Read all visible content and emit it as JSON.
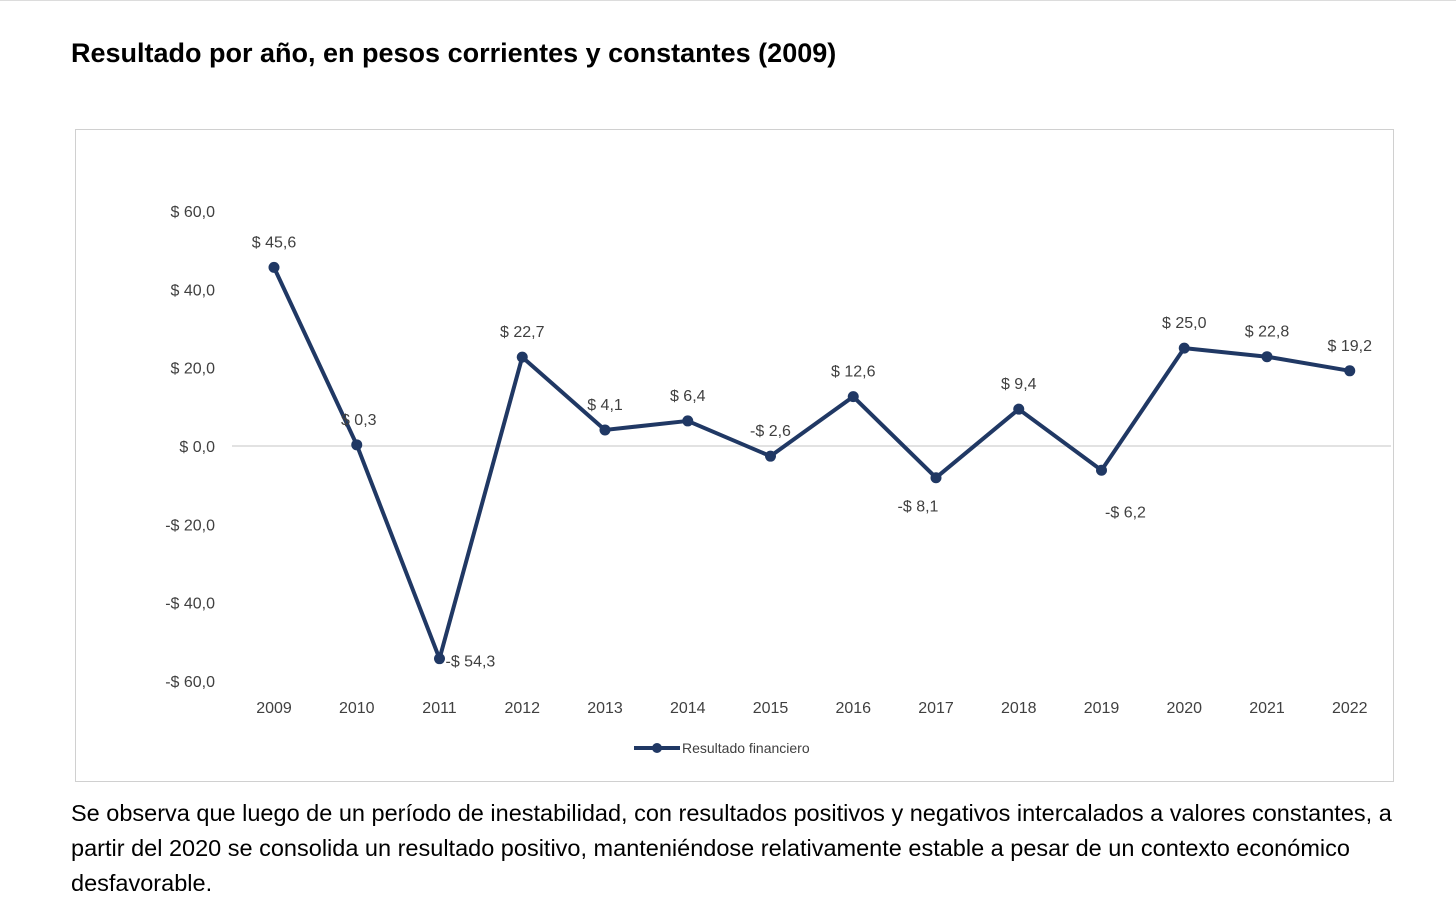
{
  "title": "Resultado por año, en pesos corrientes y constantes (2009)",
  "chart_data": {
    "type": "line",
    "title": "",
    "xlabel": "",
    "ylabel": "",
    "ylim": [
      -60,
      60
    ],
    "y_ticks": [
      {
        "value": 60,
        "label": "$ 60,0"
      },
      {
        "value": 40,
        "label": "$ 40,0"
      },
      {
        "value": 20,
        "label": "$ 20,0"
      },
      {
        "value": 0,
        "label": "$ 0,0"
      },
      {
        "value": -20,
        "label": "-$ 20,0"
      },
      {
        "value": -40,
        "label": "-$ 40,0"
      },
      {
        "value": -60,
        "label": "-$ 60,0"
      }
    ],
    "categories": [
      "2009",
      "2010",
      "2011",
      "2012",
      "2013",
      "2014",
      "2015",
      "2016",
      "2017",
      "2018",
      "2019",
      "2020",
      "2021",
      "2022"
    ],
    "series": [
      {
        "name": "Resultado financiero",
        "color": "#203864",
        "values": [
          45.6,
          0.3,
          -54.3,
          22.7,
          4.1,
          6.4,
          -2.6,
          12.6,
          -8.1,
          9.4,
          -6.2,
          25.0,
          22.8,
          19.2
        ],
        "labels": [
          "$ 45,6",
          "$ 0,3",
          "-$ 54,3",
          "$ 22,7",
          "$ 4,1",
          "$ 6,4",
          "-$ 2,6",
          "$ 12,6",
          "-$ 8,1",
          "$ 9,4",
          "-$ 6,2",
          "$ 25,0",
          "$ 22,8",
          "$ 19,2"
        ]
      }
    ],
    "zero_line": true,
    "grid": false,
    "legend": "bottom-center"
  },
  "paragraph": "Se observa que luego de un período de inestabilidad, con resultados positivos y negativos intercalados a valores constantes, a partir del 2020 se consolida un resultado positivo, manteniéndose relativamente estable a pesar de un contexto económico desfavorable."
}
